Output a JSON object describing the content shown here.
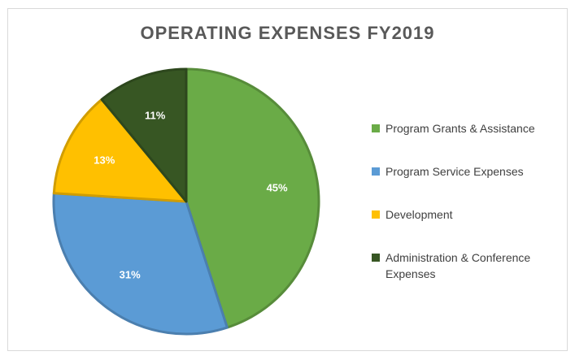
{
  "chart_data": {
    "type": "pie",
    "title": "OPERATING EXPENSES FY2019",
    "slices": [
      {
        "label": "Program Grants & Assistance",
        "value": 45,
        "display": "45%",
        "color": "#6aab47"
      },
      {
        "label": "Program Service Expenses",
        "value": 31,
        "display": "31%",
        "color": "#5b9bd5"
      },
      {
        "label": "Development",
        "value": 13,
        "display": "13%",
        "color": "#ffc000"
      },
      {
        "label": "Administration & Conference Expenses",
        "value": 11,
        "display": "11%",
        "color": "#375623"
      }
    ],
    "legend_position": "right"
  }
}
